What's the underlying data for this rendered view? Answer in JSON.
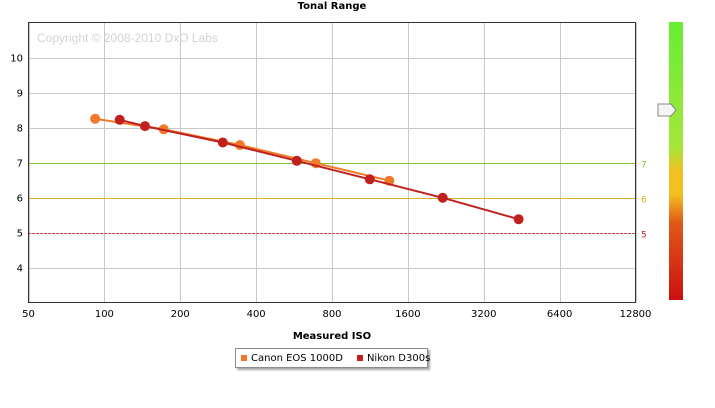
{
  "chart_data": {
    "type": "line",
    "title": "Tonal Range",
    "xlabel": "Measured ISO",
    "ylabel": "",
    "watermark": "Copyright © 2008-2010 DxO Labs",
    "x_scale": "log2",
    "xlim": [
      50,
      12800
    ],
    "ylim": [
      3,
      11
    ],
    "x_ticks": [
      50,
      100,
      200,
      400,
      800,
      1600,
      3200,
      6400,
      12800
    ],
    "x_tick_labels": [
      "50",
      "100",
      "200",
      "400",
      "800",
      "1600",
      "3200",
      "6400",
      "12800"
    ],
    "y_ticks": [
      4,
      5,
      6,
      7,
      8,
      9,
      10
    ],
    "y_tick_labels": [
      "4",
      "5",
      "6",
      "7",
      "8",
      "9",
      "10"
    ],
    "grid": true,
    "legend_position": "bottom-center",
    "reference_lines": [
      {
        "y": 7,
        "label": "7",
        "color": "#7ec82a",
        "style": "solid"
      },
      {
        "y": 6,
        "label": "6",
        "color": "#d8b020",
        "style": "solid"
      },
      {
        "y": 5,
        "label": "5",
        "color": "#cc1818",
        "style": "dotted"
      }
    ],
    "series": [
      {
        "name": "Canon EOS 1000D",
        "color": "#f07a2a",
        "x": [
          92,
          172,
          345,
          690,
          1350
        ],
        "y": [
          8.25,
          7.95,
          7.5,
          6.98,
          6.48
        ]
      },
      {
        "name": "Nikon D300s",
        "color": "#c0201e",
        "x": [
          115,
          145,
          295,
          580,
          1130,
          2200,
          4400
        ],
        "y": [
          8.22,
          8.04,
          7.57,
          7.05,
          6.52,
          5.99,
          5.38
        ]
      }
    ]
  },
  "scale_bar": {
    "colors": {
      "top": "#66ee33",
      "upper": "#a6e63a",
      "middle": "#f2c020",
      "lower": "#e05a18",
      "bottom": "#cc1010"
    },
    "indicator_level": 8.5
  }
}
